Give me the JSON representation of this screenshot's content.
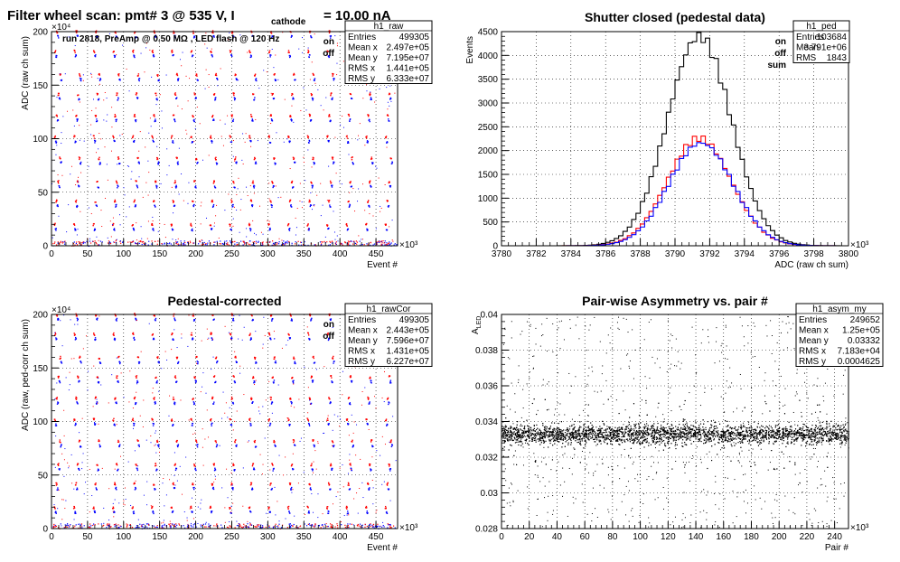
{
  "main_title": {
    "pre": "Filter wheel scan: pmt#   3 @   535 V, I",
    "sub": "cathode",
    "post": "= 10.00 nA"
  },
  "chart_data": [
    {
      "id": "raw",
      "type": "scatter",
      "title": "",
      "subtitle": "run 2818, PreAmp @ 0.50 MΩ , LED flash @  120 Hz",
      "xlabel": "Event #",
      "ylabel": "ADC (raw ch sum)",
      "x_exponent": "×10³",
      "y_exponent": "×10⁴",
      "xlim": [
        0,
        480
      ],
      "ylim": [
        0,
        200
      ],
      "xticks": [
        0,
        50,
        100,
        150,
        200,
        250,
        300,
        350,
        400,
        450
      ],
      "yticks": [
        0,
        50,
        100,
        150,
        200
      ],
      "grid": true,
      "legend": [
        {
          "label": "on",
          "color": "#ff0000"
        },
        {
          "label": "off",
          "color": "#0000ff"
        }
      ],
      "stats": {
        "name": "h1_raw",
        "rows": [
          [
            "Entries",
            "499305"
          ],
          [
            "Mean x",
            "2.497e+05"
          ],
          [
            "Mean y",
            "7.195e+07"
          ],
          [
            "RMS x",
            "1.441e+05"
          ],
          [
            "RMS y",
            "6.333e+07"
          ]
        ]
      },
      "levels": [
        18,
        40,
        58,
        80,
        100,
        120,
        140,
        158,
        180,
        198
      ],
      "band_period": 27,
      "series": [
        {
          "name": "on",
          "color": "#ff0000"
        },
        {
          "name": "off",
          "color": "#0000ff"
        }
      ]
    },
    {
      "id": "ped",
      "type": "line",
      "title": "Shutter closed (pedestal data)",
      "xlabel": "ADC (raw ch sum)",
      "ylabel": "Events",
      "x_exponent": "×10³",
      "xlim": [
        3780,
        3800
      ],
      "ylim": [
        0,
        4500
      ],
      "xticks": [
        3780,
        3782,
        3784,
        3786,
        3788,
        3790,
        3792,
        3794,
        3796,
        3798,
        3800
      ],
      "yticks": [
        0,
        500,
        1000,
        1500,
        2000,
        2500,
        3000,
        3500,
        4000,
        4500
      ],
      "grid": true,
      "legend": [
        {
          "label": "on",
          "color": "#ff0000"
        },
        {
          "label": "off",
          "color": "#0000ff"
        },
        {
          "label": "sum",
          "color": "#000000"
        }
      ],
      "stats": {
        "name": "h1_ped",
        "rows": [
          [
            "Entries",
            "103684"
          ],
          [
            "Mean",
            "3.791e+06"
          ],
          [
            "RMS",
            "1843"
          ]
        ]
      },
      "series": [
        {
          "name": "sum",
          "color": "#000000",
          "mean": 3791.4,
          "sigma": 1.84,
          "peak": 4400
        },
        {
          "name": "on",
          "color": "#ff0000",
          "mean": 3791.4,
          "sigma": 1.84,
          "peak": 2260
        },
        {
          "name": "off",
          "color": "#0000ff",
          "mean": 3791.5,
          "sigma": 1.84,
          "peak": 2160
        }
      ]
    },
    {
      "id": "rawCor",
      "type": "scatter",
      "title": "Pedestal-corrected",
      "xlabel": "Event #",
      "ylabel": "ADC (raw, ped-corr ch sum)",
      "x_exponent": "×10³",
      "y_exponent": "×10⁴",
      "xlim": [
        0,
        480
      ],
      "ylim": [
        0,
        200
      ],
      "xticks": [
        0,
        50,
        100,
        150,
        200,
        250,
        300,
        350,
        400,
        450
      ],
      "yticks": [
        0,
        50,
        100,
        150,
        200
      ],
      "grid": true,
      "legend": [
        {
          "label": "on",
          "color": "#ff0000"
        },
        {
          "label": "off",
          "color": "#0000ff"
        }
      ],
      "stats": {
        "name": "h1_rawCor",
        "rows": [
          [
            "Entries",
            "499305"
          ],
          [
            "Mean x",
            "2.443e+05"
          ],
          [
            "Mean y",
            "7.596e+07"
          ],
          [
            "RMS x",
            "1.431e+05"
          ],
          [
            "RMS y",
            "6.227e+07"
          ]
        ]
      },
      "levels": [
        18,
        40,
        58,
        80,
        100,
        120,
        140,
        158,
        180,
        198
      ],
      "band_period": 27,
      "series": [
        {
          "name": "on",
          "color": "#ff0000"
        },
        {
          "name": "off",
          "color": "#0000ff"
        }
      ]
    },
    {
      "id": "asym",
      "type": "scatter",
      "title": "Pair-wise Asymmetry vs. pair #",
      "xlabel": "Pair #",
      "ylabel": "A_LED",
      "x_exponent": "×10³",
      "xlim": [
        0,
        250
      ],
      "ylim": [
        0.028,
        0.04
      ],
      "xticks": [
        0,
        20,
        40,
        60,
        80,
        100,
        120,
        140,
        160,
        180,
        200,
        220,
        240
      ],
      "yticks": [
        0.028,
        0.03,
        0.032,
        0.034,
        0.036,
        0.038,
        0.04
      ],
      "ytick_labels": [
        "0.028",
        "0.03",
        "0.032",
        "0.034",
        "0.036",
        "0.038",
        "0.04"
      ],
      "grid": true,
      "stats": {
        "name": "h1_asym_my",
        "rows": [
          [
            "Entries",
            "249652"
          ],
          [
            "Mean x",
            "1.25e+05"
          ],
          [
            "Mean y",
            "0.03332"
          ],
          [
            "RMS x",
            "7.183e+04"
          ],
          [
            "RMS y",
            "0.0004625"
          ]
        ]
      },
      "series": [
        {
          "name": "",
          "color": "#000000",
          "center": 0.0333,
          "band_halfwidth": 0.0006
        }
      ]
    }
  ]
}
